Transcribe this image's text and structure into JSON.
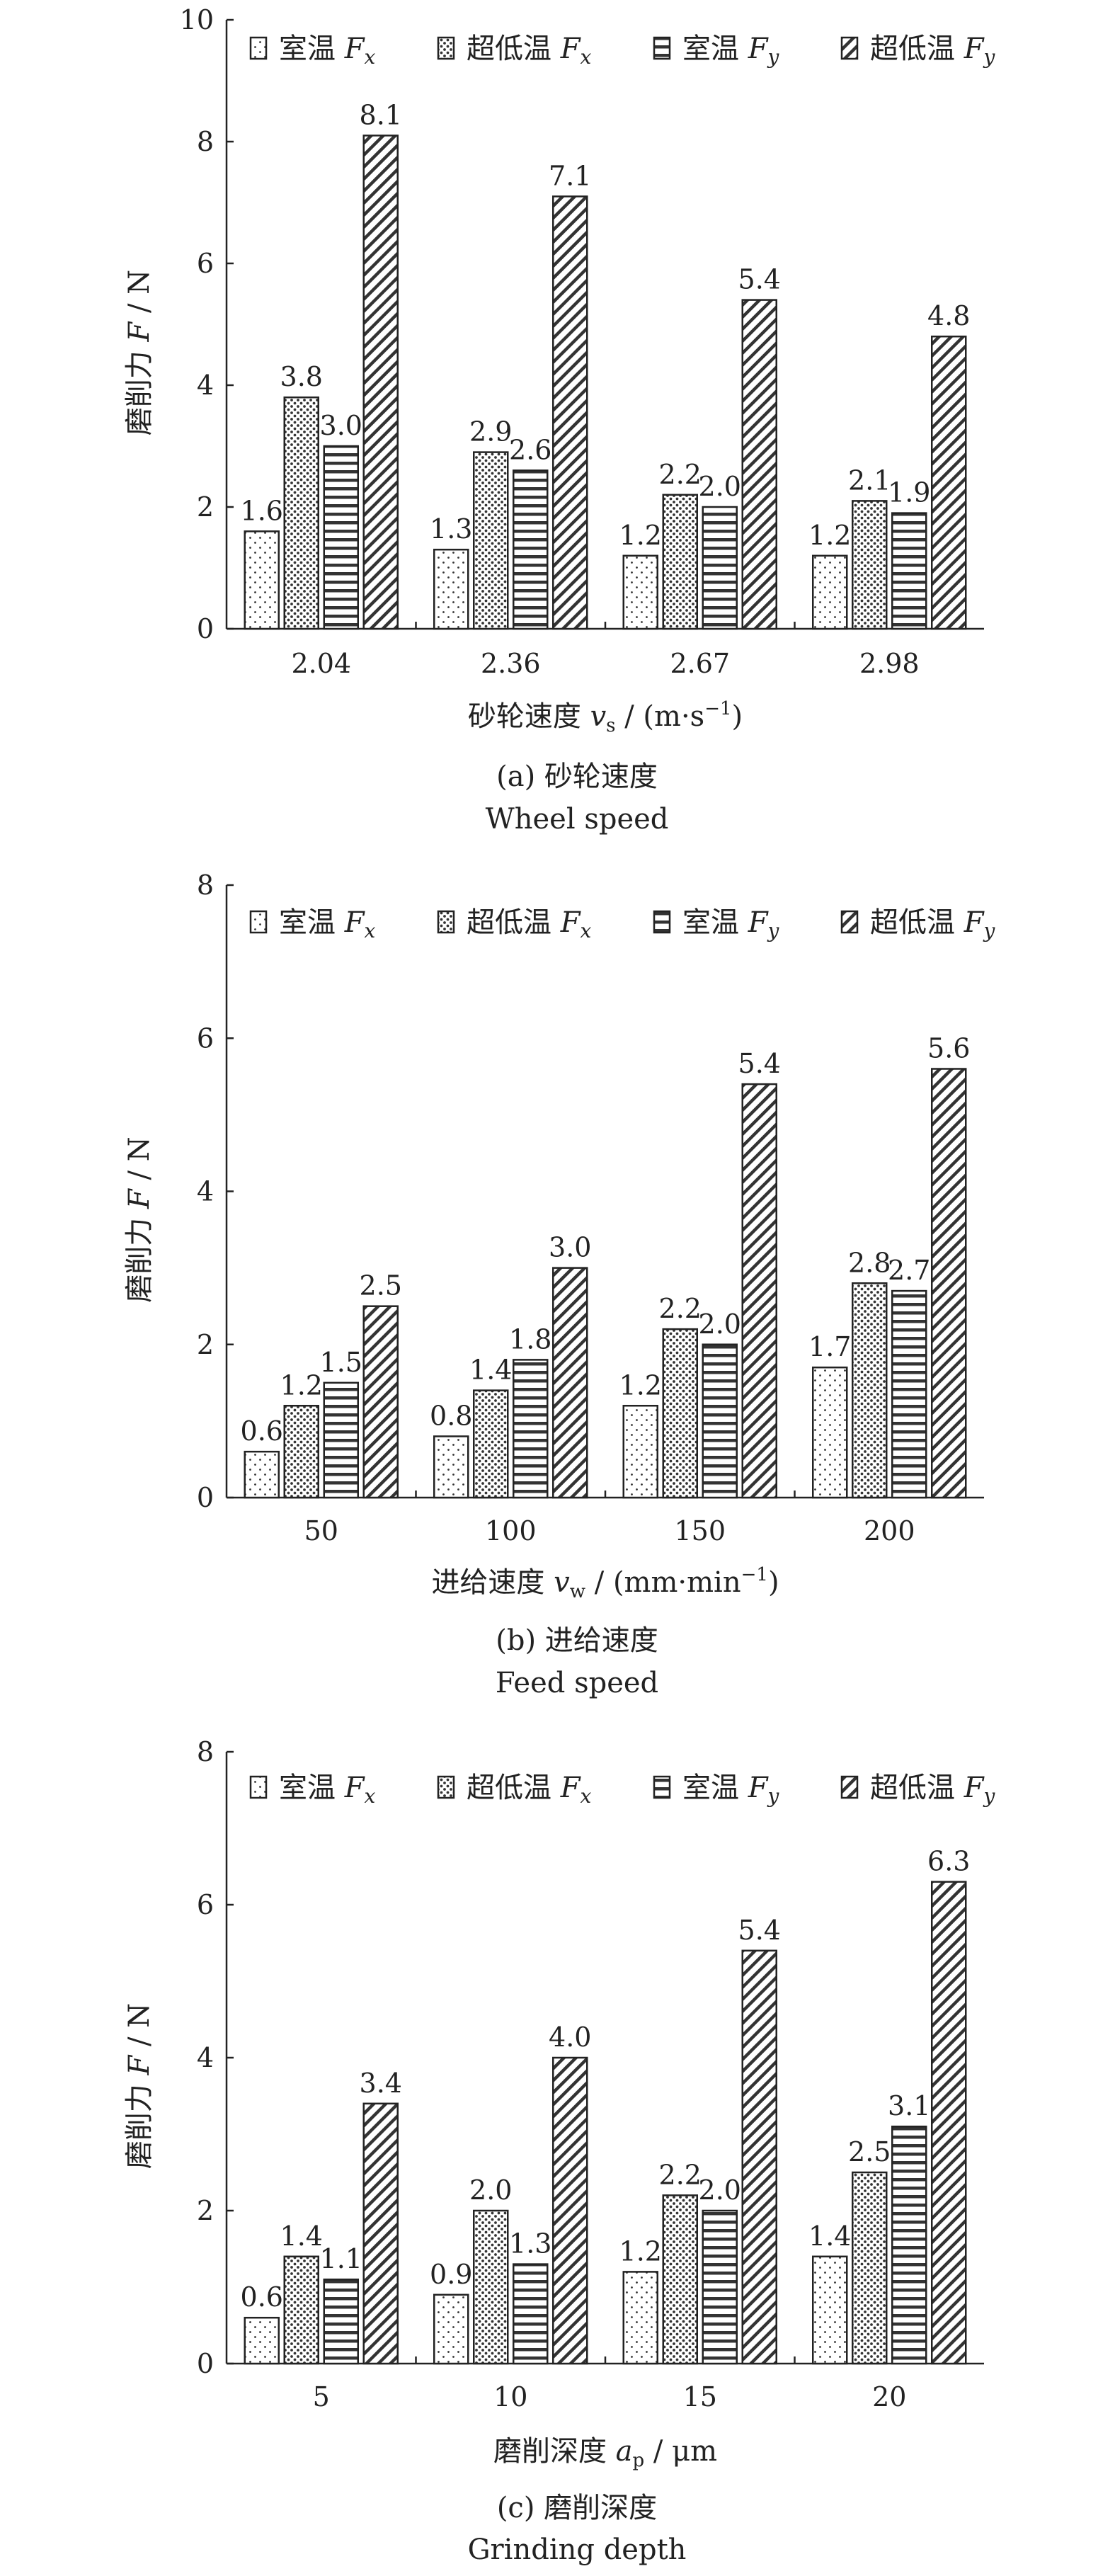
{
  "legend": [
    {
      "name": "室温",
      "symbol": "F",
      "sub": "x",
      "pattern": "dots"
    },
    {
      "name": "超低温",
      "symbol": "F",
      "sub": "x",
      "pattern": "grid"
    },
    {
      "name": "室温",
      "symbol": "F",
      "sub": "y",
      "pattern": "hlines"
    },
    {
      "name": "超低温",
      "symbol": "F",
      "sub": "y",
      "pattern": "diag"
    }
  ],
  "chart_data": [
    {
      "type": "bar",
      "title": "(a) 砂轮速度",
      "subtitle": "Wheel speed",
      "xlabel": {
        "text": "砂轮速度 ",
        "var": "v",
        "sub": "s",
        "unit": " / (m·s",
        "sup": "−1",
        "close": ")"
      },
      "ylabel": {
        "text": "磨削力 ",
        "var": "F",
        "unit": " / N"
      },
      "ylim": [
        0,
        10
      ],
      "yticks": [
        "0",
        "2",
        "4",
        "6",
        "8",
        "10"
      ],
      "categories": [
        "2.04",
        "2.36",
        "2.67",
        "2.98"
      ],
      "series": [
        {
          "name": "室温 Fx",
          "values": [
            1.6,
            1.3,
            1.2,
            1.2
          ],
          "labels": [
            "1.6",
            "1.3",
            "1.2",
            "1.2"
          ]
        },
        {
          "name": "超低温 Fx",
          "values": [
            3.8,
            2.9,
            2.2,
            2.1
          ],
          "labels": [
            "3.8",
            "2.9",
            "2.2",
            "2.1"
          ]
        },
        {
          "name": "室温 Fy",
          "values": [
            3.0,
            2.6,
            2.0,
            1.9
          ],
          "labels": [
            "3.0",
            "2.6",
            "2.0",
            "1.9"
          ]
        },
        {
          "name": "超低温 Fy",
          "values": [
            8.1,
            7.1,
            5.4,
            4.8
          ],
          "labels": [
            "8.1",
            "7.1",
            "5.4",
            "4.8"
          ]
        }
      ]
    },
    {
      "type": "bar",
      "title": "(b) 进给速度",
      "subtitle": "Feed speed",
      "xlabel": {
        "text": "进给速度 ",
        "var": "v",
        "sub": "w",
        "unit": " / (mm·min",
        "sup": "−1",
        "close": ")"
      },
      "ylabel": {
        "text": "磨削力 ",
        "var": "F",
        "unit": " / N"
      },
      "ylim": [
        0,
        8
      ],
      "yticks": [
        "0",
        "2",
        "4",
        "6",
        "8"
      ],
      "categories": [
        "50",
        "100",
        "150",
        "200"
      ],
      "series": [
        {
          "name": "室温 Fx",
          "values": [
            0.6,
            0.8,
            1.2,
            1.7
          ],
          "labels": [
            "0.6",
            "0.8",
            "1.2",
            "1.7"
          ]
        },
        {
          "name": "超低温 Fx",
          "values": [
            1.2,
            1.4,
            2.2,
            2.8
          ],
          "labels": [
            "1.2",
            "1.4",
            "2.2",
            "2.8"
          ]
        },
        {
          "name": "室温 Fy",
          "values": [
            1.5,
            1.8,
            2.0,
            2.7
          ],
          "labels": [
            "1.5",
            "1.8",
            "2.0",
            "2.7"
          ]
        },
        {
          "name": "超低温 Fy",
          "values": [
            2.5,
            3.0,
            5.4,
            5.6
          ],
          "labels": [
            "2.5",
            "3.0",
            "5.4",
            "5.6"
          ]
        }
      ]
    },
    {
      "type": "bar",
      "title": "(c) 磨削深度",
      "subtitle": "Grinding depth",
      "xlabel": {
        "text": "磨削深度 ",
        "var": "a",
        "sub": "p",
        "unit": " / μm",
        "sup": "",
        "close": ""
      },
      "ylabel": {
        "text": "磨削力 ",
        "var": "F",
        "unit": " / N"
      },
      "ylim": [
        0,
        8
      ],
      "yticks": [
        "0",
        "2",
        "4",
        "6",
        "8"
      ],
      "categories": [
        "5",
        "10",
        "15",
        "20"
      ],
      "series": [
        {
          "name": "室温 Fx",
          "values": [
            0.6,
            0.9,
            1.2,
            1.4
          ],
          "labels": [
            "0.6",
            "0.9",
            "1.2",
            "1.4"
          ]
        },
        {
          "name": "超低温 Fx",
          "values": [
            1.4,
            2.0,
            2.2,
            2.5
          ],
          "labels": [
            "1.4",
            "2.0",
            "2.2",
            "2.5"
          ]
        },
        {
          "name": "室温 Fy",
          "values": [
            1.1,
            1.3,
            2.0,
            3.1
          ],
          "labels": [
            "1.1",
            "1.3",
            "2.0",
            "3.1"
          ]
        },
        {
          "name": "超低温 Fy",
          "values": [
            3.4,
            4.0,
            5.4,
            6.3
          ],
          "labels": [
            "3.4",
            "4.0",
            "5.4",
            "6.3"
          ]
        }
      ]
    }
  ]
}
